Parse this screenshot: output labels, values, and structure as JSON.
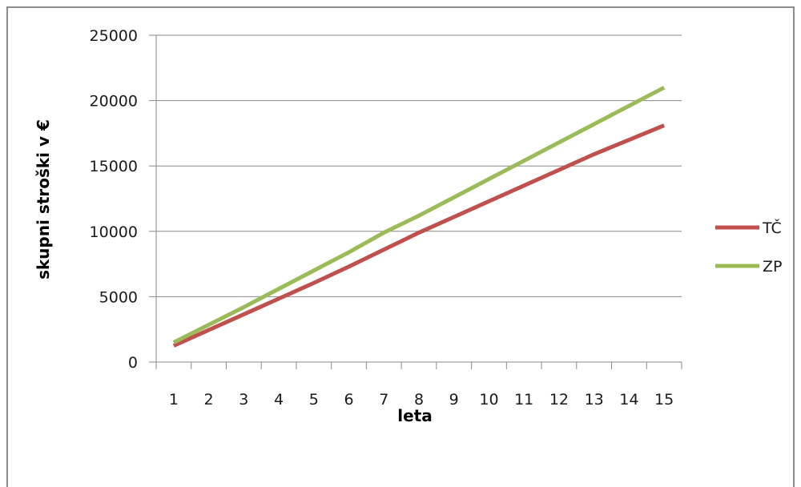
{
  "chart_data": {
    "type": "line",
    "title": "",
    "xlabel": "leta",
    "ylabel": "skupni stroški v €",
    "categories": [
      "1",
      "2",
      "3",
      "4",
      "5",
      "6",
      "7",
      "8",
      "9",
      "10",
      "11",
      "12",
      "13",
      "14",
      "15"
    ],
    "ylim": [
      0,
      25000
    ],
    "yticks": [
      "0",
      "5000",
      "10000",
      "15000",
      "20000",
      "25000"
    ],
    "grid": "horizontal",
    "legend_position": "right",
    "series": [
      {
        "name": "TČ",
        "color": "#c0504d",
        "values": [
          1250,
          2450,
          3650,
          4850,
          6050,
          7300,
          8600,
          9900,
          11100,
          12300,
          13500,
          14700,
          15900,
          17000,
          18100
        ]
      },
      {
        "name": "ZP",
        "color": "#9bbb59",
        "values": [
          1500,
          2850,
          4200,
          5600,
          7000,
          8400,
          9900,
          11200,
          12600,
          14000,
          15400,
          16800,
          18200,
          19600,
          21000
        ]
      }
    ]
  }
}
